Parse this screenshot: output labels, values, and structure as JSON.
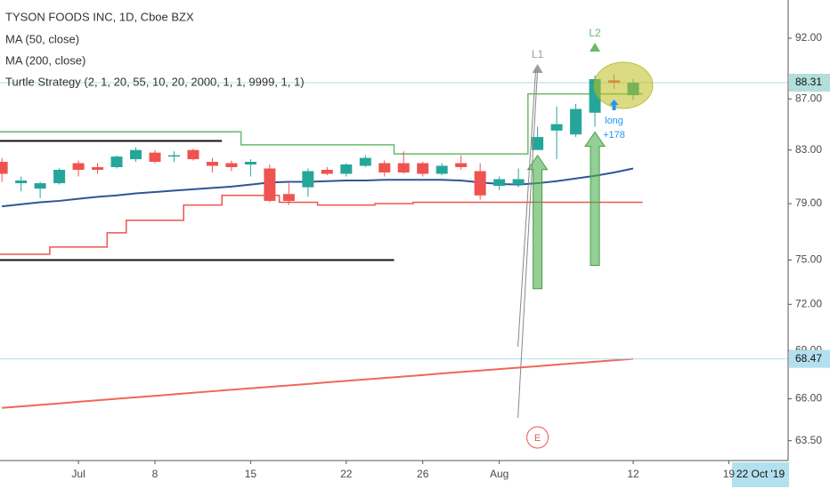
{
  "chart_data": {
    "type": "candlestick",
    "title": "TYSON FOODS INC, 1D, Cboe BZX",
    "strategy": "Turtle Strategy (2, 1, 20, 55, 10, 20, 2000, 1, 1, 9999, 1, 1)",
    "log_scale": true,
    "up_color": "#26a69a",
    "down_color": "#ef5350",
    "open": [
      82.1,
      80.5,
      80.1,
      80.5,
      82.0,
      81.7,
      81.7,
      82.3,
      82.8,
      82.5,
      83.0,
      82.1,
      82.0,
      81.9,
      81.6,
      79.7,
      80.2,
      81.5,
      81.2,
      81.8,
      82.0,
      82.0,
      82.0,
      81.2,
      82.0,
      81.4,
      80.3,
      80.4,
      83.0,
      84.5,
      84.2,
      85.9,
      88.5,
      87.3
    ],
    "high": [
      82.4,
      81.0,
      80.6,
      81.6,
      82.2,
      82.0,
      82.6,
      83.2,
      83.0,
      82.9,
      83.1,
      82.4,
      82.2,
      82.3,
      81.9,
      80.5,
      81.6,
      81.7,
      82.0,
      82.6,
      82.2,
      82.9,
      82.1,
      82.0,
      82.6,
      82.0,
      81.0,
      81.6,
      84.8,
      86.4,
      86.6,
      88.9,
      89.0,
      88.6
    ],
    "low": [
      80.6,
      79.9,
      79.4,
      80.4,
      81.0,
      81.2,
      81.6,
      82.1,
      82.0,
      82.1,
      82.2,
      81.3,
      81.4,
      81.0,
      79.1,
      78.9,
      79.5,
      81.1,
      81.0,
      81.7,
      81.0,
      81.2,
      81.0,
      81.1,
      81.5,
      79.3,
      80.0,
      80.2,
      83.0,
      82.3,
      84.0,
      84.8,
      87.8,
      86.9
    ],
    "close": [
      81.2,
      80.7,
      80.5,
      81.5,
      81.5,
      81.5,
      82.5,
      83.0,
      82.1,
      82.6,
      82.3,
      81.8,
      81.7,
      82.1,
      79.2,
      79.2,
      81.4,
      81.2,
      81.9,
      82.4,
      81.3,
      81.3,
      81.2,
      81.8,
      81.7,
      79.6,
      80.8,
      80.8,
      84.0,
      85.0,
      86.2,
      88.6,
      88.3,
      88.31
    ],
    "series": [
      {
        "name": "MA (50, close)",
        "color": "#2f5597",
        "values": [
          78.8,
          78.95,
          79.1,
          79.2,
          79.35,
          79.5,
          79.6,
          79.75,
          79.85,
          79.95,
          80.05,
          80.15,
          80.25,
          80.4,
          80.55,
          80.6,
          80.6,
          80.65,
          80.7,
          80.7,
          80.75,
          80.75,
          80.75,
          80.75,
          80.7,
          80.55,
          80.45,
          80.4,
          80.5,
          80.65,
          80.85,
          81.05,
          81.3,
          81.6
        ]
      },
      {
        "name": "MA (200, close)",
        "color": "#f0675a",
        "values": [
          65.45,
          65.54,
          65.63,
          65.72,
          65.82,
          65.91,
          66.0,
          66.09,
          66.18,
          66.27,
          66.37,
          66.46,
          66.55,
          66.64,
          66.73,
          66.82,
          66.91,
          67.01,
          67.1,
          67.19,
          67.28,
          67.37,
          67.46,
          67.56,
          67.65,
          67.74,
          67.83,
          67.92,
          68.01,
          68.11,
          68.2,
          68.29,
          68.38,
          68.47
        ]
      }
    ],
    "channels": [
      {
        "color": "#66bb6a",
        "values": [
          84.4,
          84.4,
          84.4,
          84.4,
          84.4,
          84.4,
          84.4,
          84.4,
          84.4,
          84.4,
          84.4,
          84.4,
          84.4,
          83.4,
          83.4,
          83.4,
          83.4,
          83.4,
          83.4,
          83.4,
          83.4,
          82.7,
          82.7,
          82.7,
          82.7,
          82.7,
          82.7,
          82.7,
          87.4,
          87.4,
          87.4,
          87.4,
          87.4,
          87.4
        ]
      },
      {
        "color": "#ef5350",
        "values": [
          75.4,
          75.4,
          75.4,
          75.9,
          75.9,
          75.9,
          76.9,
          77.8,
          77.8,
          77.8,
          78.9,
          78.9,
          79.6,
          79.6,
          79.6,
          79.1,
          79.1,
          78.9,
          78.9,
          78.9,
          79.0,
          79.0,
          79.1,
          79.1,
          79.1,
          79.1,
          79.1,
          79.1,
          79.1,
          79.1,
          79.1,
          79.1,
          79.1,
          79.1
        ]
      }
    ],
    "reference_lines": [
      {
        "value": 83.7,
        "from": 0,
        "to": 11
      },
      {
        "value": 75.0,
        "from": 0,
        "to": 20
      }
    ],
    "price_lines": [
      {
        "value": 88.31,
        "color": "#b2dfdb"
      },
      {
        "value": 68.47,
        "color": "#b3e0ee"
      }
    ],
    "signals": [
      {
        "index": 28,
        "label": "L1",
        "color": "#9e9e9e"
      },
      {
        "index": 31,
        "label": "L2",
        "color": "#66bb6a"
      }
    ],
    "order": {
      "index": 32,
      "text": "long",
      "amount": "+178"
    },
    "exit_marker": {
      "index": 28,
      "label": "E"
    },
    "xlim": [
      -0.1,
      41.1
    ],
    "ylim": [
      62.35,
      95.3
    ],
    "yticks": [
      {
        "value": 92,
        "label": "92.00"
      },
      {
        "value": 87,
        "label": "87.00"
      },
      {
        "value": 83,
        "label": "83.00"
      },
      {
        "value": 79,
        "label": "79.00"
      },
      {
        "value": 75,
        "label": "75.00"
      },
      {
        "value": 72,
        "label": "72.00"
      },
      {
        "value": 69,
        "label": "69.00"
      },
      {
        "value": 66,
        "label": "66.00"
      },
      {
        "value": 63.5,
        "label": "63.50"
      }
    ],
    "xticks": [
      {
        "value": 4,
        "label": "Jul"
      },
      {
        "value": 8,
        "label": "8"
      },
      {
        "value": 13,
        "label": "15"
      },
      {
        "value": 18,
        "label": "22"
      },
      {
        "value": 22,
        "label": "26"
      },
      {
        "value": 26,
        "label": "Aug"
      },
      {
        "value": 33,
        "label": "12"
      },
      {
        "value": 38,
        "label": "19"
      }
    ],
    "cursor_date": "22 Oct '19"
  }
}
